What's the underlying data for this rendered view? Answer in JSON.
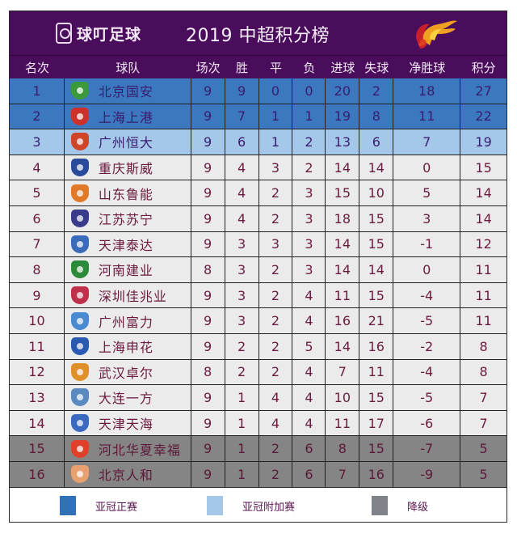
{
  "header": {
    "brand_name": "球叮足球",
    "brand_icon": "map-pin-icon",
    "title": "2019 中超积分榜",
    "league_logo": "flame-logo-icon"
  },
  "columns": [
    "名次",
    "球队",
    "场次",
    "胜",
    "平",
    "负",
    "进球",
    "失球",
    "净胜球",
    "积分"
  ],
  "colors": {
    "header_bg": "#4a0d5c",
    "acl": "#3b78bf",
    "acl_playoff": "#a4c7ea",
    "normal": "#ebebeb",
    "relegation": "#858585",
    "text": "#6a1a3e"
  },
  "rows": [
    {
      "rank": "1",
      "team": "北京国安",
      "played": "9",
      "won": "9",
      "drawn": "0",
      "lost": "0",
      "gf": "20",
      "ga": "2",
      "gd": "18",
      "pts": "27",
      "zone": "acl",
      "crest_color": "#3a9a3a"
    },
    {
      "rank": "2",
      "team": "上海上港",
      "played": "9",
      "won": "7",
      "drawn": "1",
      "lost": "1",
      "gf": "19",
      "ga": "8",
      "gd": "11",
      "pts": "22",
      "zone": "acl",
      "crest_color": "#d0302a"
    },
    {
      "rank": "3",
      "team": "广州恒大",
      "played": "9",
      "won": "6",
      "drawn": "1",
      "lost": "2",
      "gf": "13",
      "ga": "6",
      "gd": "7",
      "pts": "19",
      "zone": "acl-po",
      "crest_color": "#d0442a"
    },
    {
      "rank": "4",
      "team": "重庆斯威",
      "played": "9",
      "won": "4",
      "drawn": "3",
      "lost": "2",
      "gf": "14",
      "ga": "14",
      "gd": "0",
      "pts": "15",
      "zone": "normal",
      "crest_color": "#2a4a9a"
    },
    {
      "rank": "5",
      "team": "山东鲁能",
      "played": "9",
      "won": "4",
      "drawn": "2",
      "lost": "3",
      "gf": "15",
      "ga": "10",
      "gd": "5",
      "pts": "14",
      "zone": "normal",
      "crest_color": "#e07a2a"
    },
    {
      "rank": "6",
      "team": "江苏苏宁",
      "played": "9",
      "won": "4",
      "drawn": "2",
      "lost": "3",
      "gf": "18",
      "ga": "15",
      "gd": "3",
      "pts": "14",
      "zone": "normal",
      "crest_color": "#3a3a8a"
    },
    {
      "rank": "7",
      "team": "天津泰达",
      "played": "9",
      "won": "3",
      "drawn": "3",
      "lost": "3",
      "gf": "14",
      "ga": "15",
      "gd": "-1",
      "pts": "12",
      "zone": "normal",
      "crest_color": "#3a6aba"
    },
    {
      "rank": "8",
      "team": "河南建业",
      "played": "8",
      "won": "3",
      "drawn": "2",
      "lost": "3",
      "gf": "14",
      "ga": "14",
      "gd": "0",
      "pts": "11",
      "zone": "normal",
      "crest_color": "#2a8a3a"
    },
    {
      "rank": "9",
      "team": "深圳佳兆业",
      "played": "9",
      "won": "3",
      "drawn": "2",
      "lost": "4",
      "gf": "11",
      "ga": "15",
      "gd": "-4",
      "pts": "11",
      "zone": "normal",
      "crest_color": "#c0304a"
    },
    {
      "rank": "10",
      "team": "广州富力",
      "played": "9",
      "won": "3",
      "drawn": "2",
      "lost": "4",
      "gf": "16",
      "ga": "21",
      "gd": "-5",
      "pts": "11",
      "zone": "normal",
      "crest_color": "#4a8ad0"
    },
    {
      "rank": "11",
      "team": "上海申花",
      "played": "9",
      "won": "2",
      "drawn": "2",
      "lost": "5",
      "gf": "14",
      "ga": "16",
      "gd": "-2",
      "pts": "8",
      "zone": "normal",
      "crest_color": "#2a5ab0"
    },
    {
      "rank": "12",
      "team": "武汉卓尔",
      "played": "8",
      "won": "2",
      "drawn": "2",
      "lost": "4",
      "gf": "7",
      "ga": "11",
      "gd": "-4",
      "pts": "8",
      "zone": "normal",
      "crest_color": "#e0902a"
    },
    {
      "rank": "13",
      "team": "大连一方",
      "played": "9",
      "won": "1",
      "drawn": "4",
      "lost": "4",
      "gf": "10",
      "ga": "15",
      "gd": "-5",
      "pts": "7",
      "zone": "normal",
      "crest_color": "#5a8ac0"
    },
    {
      "rank": "14",
      "team": "天津天海",
      "played": "9",
      "won": "1",
      "drawn": "4",
      "lost": "4",
      "gf": "11",
      "ga": "17",
      "gd": "-6",
      "pts": "7",
      "zone": "normal",
      "crest_color": "#3a6ac0"
    },
    {
      "rank": "15",
      "team": "河北华夏幸福",
      "played": "9",
      "won": "1",
      "drawn": "2",
      "lost": "6",
      "gf": "8",
      "ga": "15",
      "gd": "-7",
      "pts": "5",
      "zone": "releg",
      "crest_color": "#e0402a"
    },
    {
      "rank": "16",
      "team": "北京人和",
      "played": "9",
      "won": "1",
      "drawn": "2",
      "lost": "6",
      "gf": "7",
      "ga": "16",
      "gd": "-9",
      "pts": "5",
      "zone": "releg",
      "crest_color": "#e8a070"
    }
  ],
  "legend": [
    {
      "label": "亚冠正赛",
      "color": "#3072b8"
    },
    {
      "label": "亚冠附加赛",
      "color": "#a4c7ea"
    },
    {
      "label": "降级",
      "color": "#7f8288"
    }
  ]
}
